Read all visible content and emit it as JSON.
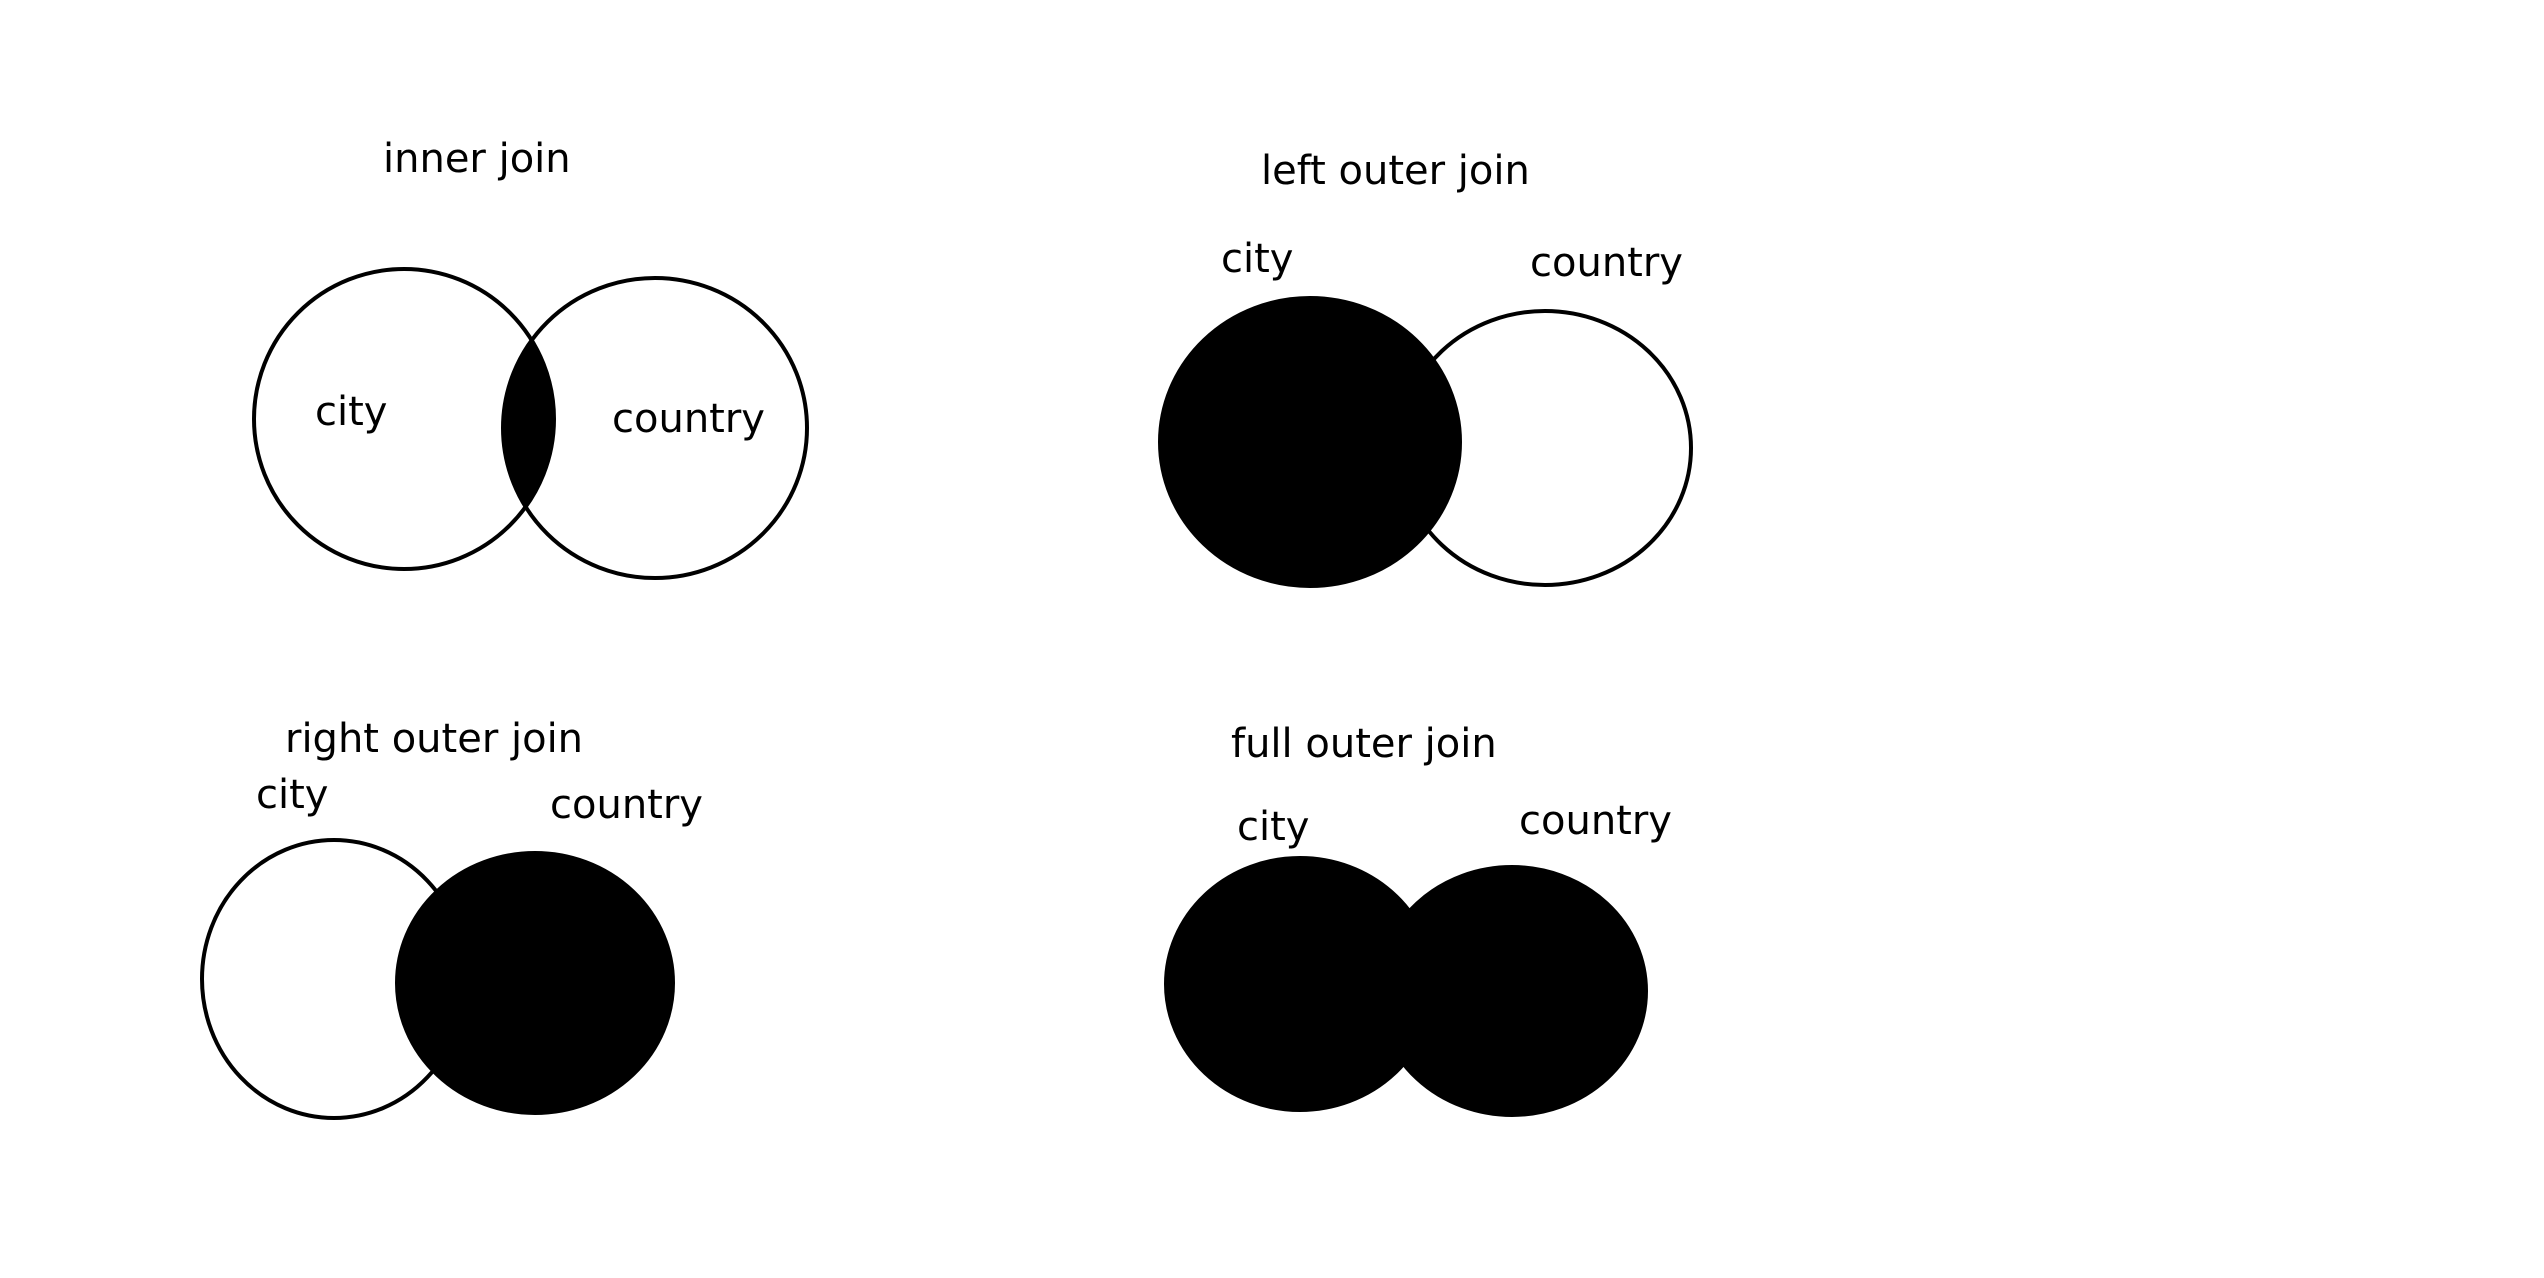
{
  "colors": {
    "background": "#ffffff",
    "ink": "#000000"
  },
  "panels": {
    "inner": {
      "title": "inner join",
      "left_label": "city",
      "right_label": "country"
    },
    "left": {
      "title": "left outer join",
      "left_label": "city",
      "right_label": "country"
    },
    "right": {
      "title": "right outer join",
      "left_label": "city",
      "right_label": "country"
    },
    "full": {
      "title": "full outer join",
      "left_label": "city",
      "right_label": "country"
    }
  }
}
